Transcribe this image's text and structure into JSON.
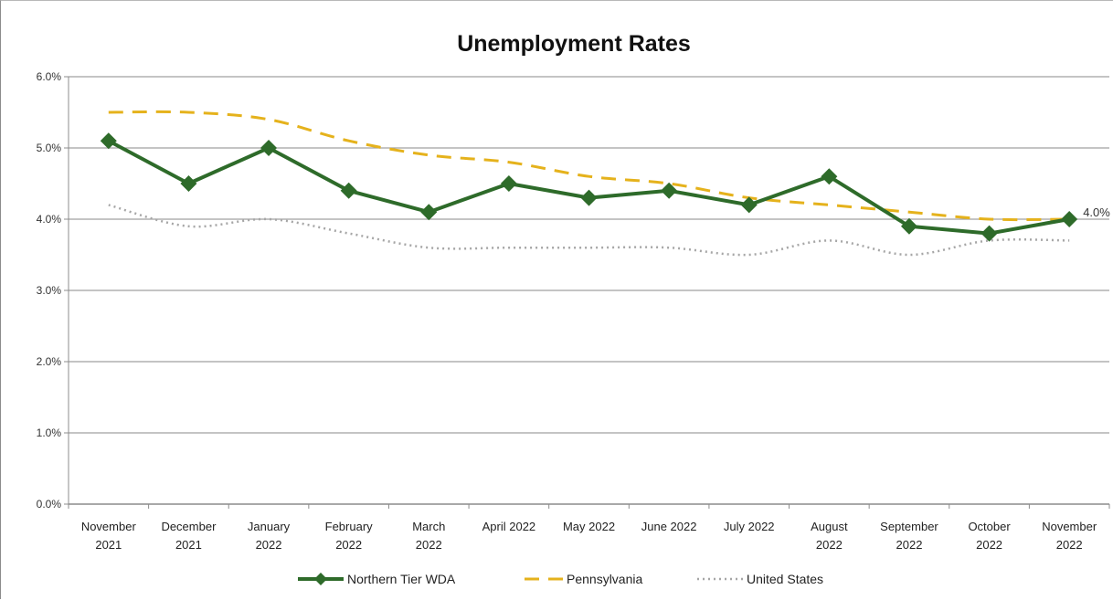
{
  "chart_data": {
    "type": "line",
    "title": "Unemployment Rates",
    "xlabel": "",
    "ylabel": "",
    "categories": [
      [
        "November",
        "2021"
      ],
      [
        "December",
        "2021"
      ],
      [
        "January",
        "2022"
      ],
      [
        "February",
        "2022"
      ],
      [
        "March",
        "2022"
      ],
      [
        "April 2022"
      ],
      [
        "May 2022"
      ],
      [
        "June 2022"
      ],
      [
        "July 2022"
      ],
      [
        "August",
        "2022"
      ],
      [
        "September",
        "2022"
      ],
      [
        "October",
        "2022"
      ],
      [
        "November",
        "2022"
      ]
    ],
    "ylim": [
      0,
      6
    ],
    "yticks": [
      0,
      1,
      2,
      3,
      4,
      5,
      6
    ],
    "ytick_labels": [
      "0.0%",
      "1.0%",
      "2.0%",
      "3.0%",
      "4.0%",
      "5.0%",
      "6.0%"
    ],
    "grid": true,
    "legend_position": "bottom",
    "series": [
      {
        "name": "Northern Tier WDA",
        "style": "solid-diamond",
        "color": "#2e6b2a",
        "values": [
          5.1,
          4.5,
          5.0,
          4.4,
          4.1,
          4.5,
          4.3,
          4.4,
          4.2,
          4.6,
          3.9,
          3.8,
          4.0
        ]
      },
      {
        "name": "Pennsylvania",
        "style": "dashed",
        "color": "#e5b21c",
        "values": [
          5.5,
          5.5,
          5.4,
          5.1,
          4.9,
          4.8,
          4.6,
          4.5,
          4.3,
          4.2,
          4.1,
          4.0,
          4.0
        ]
      },
      {
        "name": "United States",
        "style": "dotted",
        "color": "#a6a6a6",
        "values": [
          4.2,
          3.9,
          4.0,
          3.8,
          3.6,
          3.6,
          3.6,
          3.6,
          3.5,
          3.7,
          3.5,
          3.7,
          3.7
        ]
      }
    ],
    "annotations": [
      {
        "series": "Northern Tier WDA",
        "index": 12,
        "text": "4.0%"
      }
    ]
  }
}
